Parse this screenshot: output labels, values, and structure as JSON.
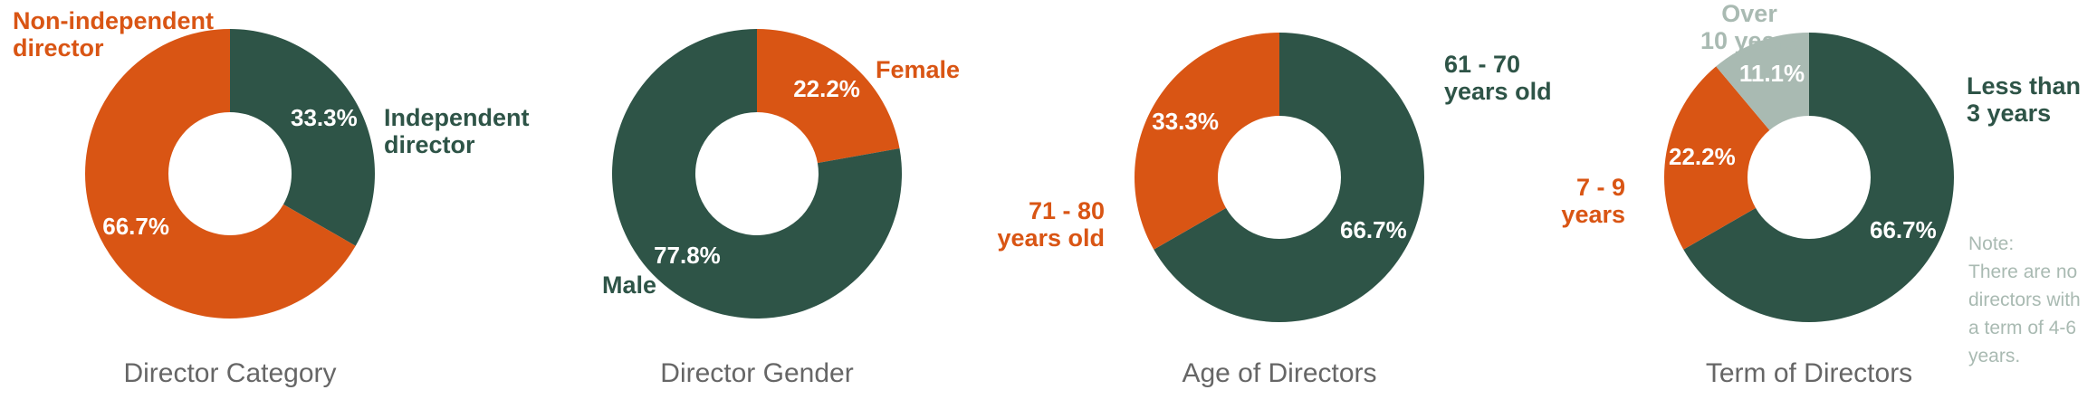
{
  "chart_data": [
    {
      "type": "pie",
      "title": "Director Category",
      "categories": [
        "Independent\ndirector",
        "Non-independent\ndirector"
      ],
      "values": [
        33.3,
        66.7
      ],
      "value_labels": [
        "33.3%",
        "66.7%"
      ],
      "colors": [
        "#2e5447",
        "#d95514"
      ]
    },
    {
      "type": "pie",
      "title": "Director Gender",
      "categories": [
        "Female",
        "Male"
      ],
      "values": [
        22.2,
        77.8
      ],
      "value_labels": [
        "22.2%",
        "77.8%"
      ],
      "colors": [
        "#d95514",
        "#2e5447"
      ]
    },
    {
      "type": "pie",
      "title": "Age of Directors",
      "categories": [
        "61 - 70\nyears old",
        "71 - 80\nyears old"
      ],
      "values": [
        66.7,
        33.3
      ],
      "value_labels": [
        "66.7%",
        "33.3%"
      ],
      "colors": [
        "#2e5447",
        "#d95514"
      ]
    },
    {
      "type": "pie",
      "title": "Term of Directors",
      "categories": [
        "Less than\n3 years",
        "7 - 9\nyears",
        "Over\n10 years"
      ],
      "values": [
        66.7,
        22.2,
        11.1
      ],
      "value_labels": [
        "66.7%",
        "22.2%",
        "11.1%"
      ],
      "colors": [
        "#2e5447",
        "#d95514",
        "#a9bab2"
      ],
      "annotations": [
        "Note:",
        "There are no directors with a term of 4-6 years."
      ]
    }
  ]
}
